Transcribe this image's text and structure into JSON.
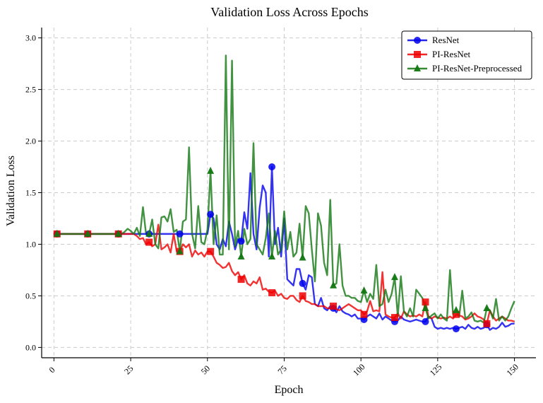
{
  "chart_data": {
    "type": "line",
    "title": "Validation Loss Across Epochs",
    "xlabel": "Epoch",
    "ylabel": "Validation Loss",
    "xlim": [
      -4,
      157
    ],
    "ylim": [
      -0.1,
      3.1
    ],
    "xticks": [
      0,
      25,
      50,
      75,
      100,
      125,
      150
    ],
    "xtick_labels": [
      "0",
      "25",
      "50",
      "75",
      "100",
      "125",
      "150"
    ],
    "yticks": [
      0.0,
      0.5,
      1.0,
      1.5,
      2.0,
      2.5,
      3.0
    ],
    "ytick_labels": [
      "0.0",
      "0.5",
      "1.0",
      "1.5",
      "2.0",
      "2.5",
      "3.0"
    ],
    "grid": true,
    "legend_position": "top-right",
    "marker_every": 10,
    "x": [
      1,
      2,
      3,
      4,
      5,
      6,
      7,
      8,
      9,
      10,
      11,
      12,
      13,
      14,
      15,
      16,
      17,
      18,
      19,
      20,
      21,
      22,
      23,
      24,
      25,
      26,
      27,
      28,
      29,
      30,
      31,
      32,
      33,
      34,
      35,
      36,
      37,
      38,
      39,
      40,
      41,
      42,
      43,
      44,
      45,
      46,
      47,
      48,
      49,
      50,
      51,
      52,
      53,
      54,
      55,
      56,
      57,
      58,
      59,
      60,
      61,
      62,
      63,
      64,
      65,
      66,
      67,
      68,
      69,
      70,
      71,
      72,
      73,
      74,
      75,
      76,
      77,
      78,
      79,
      80,
      81,
      82,
      83,
      84,
      85,
      86,
      87,
      88,
      89,
      90,
      91,
      92,
      93,
      94,
      95,
      96,
      97,
      98,
      99,
      100,
      101,
      102,
      103,
      104,
      105,
      106,
      107,
      108,
      109,
      110,
      111,
      112,
      113,
      114,
      115,
      116,
      117,
      118,
      119,
      120,
      121,
      122,
      123,
      124,
      125,
      126,
      127,
      128,
      129,
      130,
      131,
      132,
      133,
      134,
      135,
      136,
      137,
      138,
      139,
      140,
      141,
      142,
      143,
      144,
      145,
      146,
      147,
      148,
      149,
      150
    ],
    "series": [
      {
        "name": "ResNet",
        "color": "#0000ee",
        "marker": "circle",
        "values": [
          1.1,
          1.1,
          1.1,
          1.1,
          1.1,
          1.1,
          1.1,
          1.1,
          1.1,
          1.1,
          1.1,
          1.1,
          1.1,
          1.1,
          1.1,
          1.1,
          1.1,
          1.1,
          1.1,
          1.1,
          1.1,
          1.1,
          1.1,
          1.1,
          1.1,
          1.1,
          1.1,
          1.1,
          1.1,
          1.1,
          1.1,
          1.1,
          1.1,
          1.1,
          1.1,
          1.1,
          1.1,
          1.1,
          1.1,
          1.1,
          1.1,
          1.1,
          1.1,
          1.1,
          1.1,
          1.1,
          1.1,
          1.1,
          1.1,
          1.1,
          1.29,
          1.25,
          1.0,
          0.95,
          1.05,
          0.98,
          1.22,
          1.1,
          0.95,
          1.05,
          1.03,
          1.31,
          1.15,
          1.69,
          1.1,
          0.95,
          1.35,
          1.57,
          1.5,
          0.88,
          1.75,
          1.0,
          1.16,
          0.88,
          1.25,
          0.66,
          0.63,
          0.6,
          0.76,
          0.76,
          0.62,
          0.56,
          0.7,
          0.68,
          0.42,
          0.4,
          0.48,
          0.38,
          0.36,
          0.4,
          0.38,
          0.34,
          0.4,
          0.35,
          0.33,
          0.32,
          0.3,
          0.32,
          0.28,
          0.28,
          0.27,
          0.3,
          0.32,
          0.3,
          0.28,
          0.33,
          0.27,
          0.3,
          0.28,
          0.26,
          0.25,
          0.26,
          0.3,
          0.27,
          0.26,
          0.25,
          0.26,
          0.27,
          0.26,
          0.25,
          0.25,
          0.3,
          0.28,
          0.2,
          0.18,
          0.19,
          0.18,
          0.19,
          0.18,
          0.19,
          0.18,
          0.19,
          0.2,
          0.18,
          0.22,
          0.19,
          0.18,
          0.2,
          0.18,
          0.19,
          0.22,
          0.17,
          0.19,
          0.18,
          0.2,
          0.24,
          0.2,
          0.21,
          0.23,
          0.23
        ]
      },
      {
        "name": "PI-ResNet",
        "color": "#ee0000",
        "marker": "square",
        "values": [
          1.1,
          1.1,
          1.1,
          1.1,
          1.1,
          1.1,
          1.1,
          1.1,
          1.1,
          1.1,
          1.1,
          1.1,
          1.1,
          1.1,
          1.1,
          1.1,
          1.1,
          1.1,
          1.1,
          1.1,
          1.1,
          1.1,
          1.1,
          1.1,
          1.1,
          1.1,
          1.08,
          1.05,
          1.06,
          1.0,
          1.02,
          0.98,
          1.0,
          1.19,
          0.95,
          0.97,
          1.0,
          0.92,
          1.1,
          0.93,
          0.93,
          1.0,
          0.97,
          1.0,
          0.88,
          0.94,
          0.9,
          0.92,
          0.88,
          0.93,
          0.93,
          0.88,
          0.82,
          0.8,
          0.77,
          0.78,
          0.82,
          0.74,
          0.7,
          0.73,
          0.66,
          0.7,
          0.62,
          0.6,
          0.64,
          0.62,
          0.68,
          0.56,
          0.57,
          0.54,
          0.53,
          0.55,
          0.5,
          0.52,
          0.48,
          0.47,
          0.5,
          0.5,
          0.46,
          0.44,
          0.5,
          0.45,
          0.44,
          0.42,
          0.42,
          0.4,
          0.4,
          0.4,
          0.38,
          0.38,
          0.4,
          0.37,
          0.36,
          0.38,
          0.4,
          0.42,
          0.4,
          0.38,
          0.36,
          0.36,
          0.32,
          0.35,
          0.45,
          0.35,
          0.36,
          0.35,
          0.73,
          0.32,
          0.3,
          0.29,
          0.29,
          0.33,
          0.28,
          0.35,
          0.32,
          0.3,
          0.31,
          0.3,
          0.32,
          0.3,
          0.44,
          0.3,
          0.28,
          0.3,
          0.29,
          0.28,
          0.29,
          0.28,
          0.3,
          0.28,
          0.32,
          0.31,
          0.3,
          0.27,
          0.28,
          0.3,
          0.33,
          0.3,
          0.29,
          0.27,
          0.23,
          0.36,
          0.3,
          0.26,
          0.28,
          0.3,
          0.28,
          0.26,
          0.26,
          0.25
        ]
      },
      {
        "name": "PI-ResNet-Preprocessed",
        "color": "#117711",
        "marker": "triangle",
        "values": [
          1.1,
          1.1,
          1.1,
          1.1,
          1.1,
          1.1,
          1.1,
          1.1,
          1.1,
          1.1,
          1.1,
          1.1,
          1.1,
          1.1,
          1.1,
          1.1,
          1.1,
          1.1,
          1.1,
          1.1,
          1.1,
          1.1,
          1.12,
          1.15,
          1.13,
          1.1,
          1.16,
          1.08,
          1.36,
          1.1,
          1.1,
          1.24,
          1.0,
          0.96,
          1.26,
          1.27,
          1.22,
          1.34,
          1.12,
          1.14,
          0.93,
          1.22,
          1.24,
          1.94,
          1.1,
          0.96,
          1.37,
          1.02,
          1.0,
          1.14,
          1.71,
          1.0,
          1.28,
          0.9,
          0.9,
          2.83,
          0.95,
          2.78,
          0.98,
          1.13,
          0.88,
          1.15,
          1.0,
          1.05,
          1.98,
          1.0,
          0.95,
          0.9,
          1.06,
          1.3,
          0.88,
          1.13,
          0.9,
          0.95,
          1.32,
          0.95,
          1.12,
          0.88,
          0.92,
          1.2,
          0.87,
          1.37,
          1.3,
          0.95,
          0.64,
          1.3,
          1.18,
          0.82,
          0.7,
          1.43,
          0.6,
          0.62,
          1.0,
          0.6,
          0.5,
          0.5,
          0.48,
          0.48,
          0.45,
          0.44,
          0.55,
          0.44,
          0.52,
          0.47,
          0.8,
          0.4,
          0.42,
          0.56,
          0.44,
          0.52,
          0.68,
          0.3,
          0.69,
          0.35,
          0.3,
          0.38,
          0.3,
          0.56,
          0.52,
          0.48,
          0.38,
          0.28,
          0.31,
          0.33,
          0.28,
          0.32,
          0.28,
          0.26,
          0.75,
          0.32,
          0.36,
          0.3,
          0.55,
          0.28,
          0.3,
          0.34,
          0.26,
          0.25,
          0.26,
          0.24,
          0.38,
          0.36,
          0.28,
          0.47,
          0.26,
          0.3,
          0.26,
          0.3,
          0.38,
          0.45
        ]
      }
    ]
  }
}
